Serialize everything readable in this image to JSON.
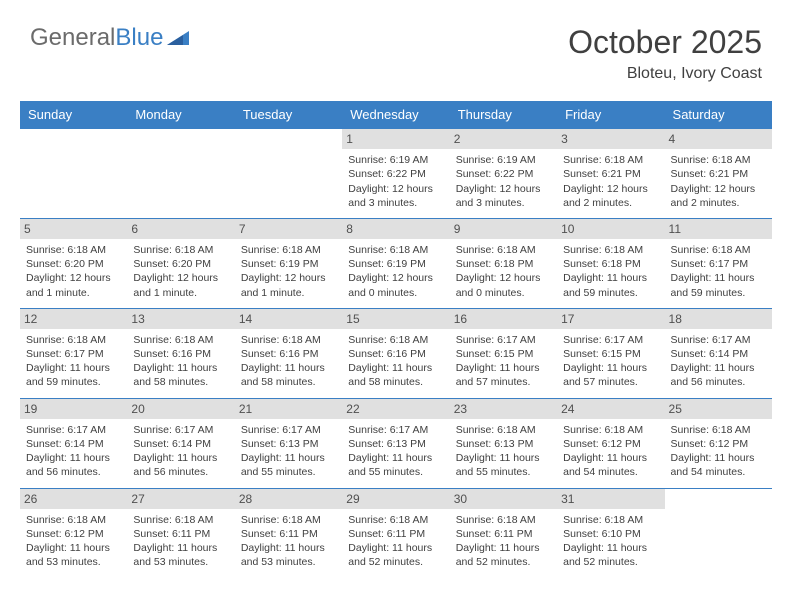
{
  "brand": {
    "part1": "General",
    "part2": "Blue"
  },
  "title": "October 2025",
  "location": "Bloteu, Ivory Coast",
  "colors": {
    "accent": "#3a7fc4",
    "header_text": "#ffffff",
    "body_text": "#404040",
    "daynum_bg": "#e0e0e0",
    "page_bg": "#ffffff"
  },
  "day_labels": [
    "Sunday",
    "Monday",
    "Tuesday",
    "Wednesday",
    "Thursday",
    "Friday",
    "Saturday"
  ],
  "weeks": [
    [
      {
        "n": "",
        "sr": "",
        "ss": "",
        "dl": ""
      },
      {
        "n": "",
        "sr": "",
        "ss": "",
        "dl": ""
      },
      {
        "n": "",
        "sr": "",
        "ss": "",
        "dl": ""
      },
      {
        "n": "1",
        "sr": "Sunrise: 6:19 AM",
        "ss": "Sunset: 6:22 PM",
        "dl": "Daylight: 12 hours and 3 minutes."
      },
      {
        "n": "2",
        "sr": "Sunrise: 6:19 AM",
        "ss": "Sunset: 6:22 PM",
        "dl": "Daylight: 12 hours and 3 minutes."
      },
      {
        "n": "3",
        "sr": "Sunrise: 6:18 AM",
        "ss": "Sunset: 6:21 PM",
        "dl": "Daylight: 12 hours and 2 minutes."
      },
      {
        "n": "4",
        "sr": "Sunrise: 6:18 AM",
        "ss": "Sunset: 6:21 PM",
        "dl": "Daylight: 12 hours and 2 minutes."
      }
    ],
    [
      {
        "n": "5",
        "sr": "Sunrise: 6:18 AM",
        "ss": "Sunset: 6:20 PM",
        "dl": "Daylight: 12 hours and 1 minute."
      },
      {
        "n": "6",
        "sr": "Sunrise: 6:18 AM",
        "ss": "Sunset: 6:20 PM",
        "dl": "Daylight: 12 hours and 1 minute."
      },
      {
        "n": "7",
        "sr": "Sunrise: 6:18 AM",
        "ss": "Sunset: 6:19 PM",
        "dl": "Daylight: 12 hours and 1 minute."
      },
      {
        "n": "8",
        "sr": "Sunrise: 6:18 AM",
        "ss": "Sunset: 6:19 PM",
        "dl": "Daylight: 12 hours and 0 minutes."
      },
      {
        "n": "9",
        "sr": "Sunrise: 6:18 AM",
        "ss": "Sunset: 6:18 PM",
        "dl": "Daylight: 12 hours and 0 minutes."
      },
      {
        "n": "10",
        "sr": "Sunrise: 6:18 AM",
        "ss": "Sunset: 6:18 PM",
        "dl": "Daylight: 11 hours and 59 minutes."
      },
      {
        "n": "11",
        "sr": "Sunrise: 6:18 AM",
        "ss": "Sunset: 6:17 PM",
        "dl": "Daylight: 11 hours and 59 minutes."
      }
    ],
    [
      {
        "n": "12",
        "sr": "Sunrise: 6:18 AM",
        "ss": "Sunset: 6:17 PM",
        "dl": "Daylight: 11 hours and 59 minutes."
      },
      {
        "n": "13",
        "sr": "Sunrise: 6:18 AM",
        "ss": "Sunset: 6:16 PM",
        "dl": "Daylight: 11 hours and 58 minutes."
      },
      {
        "n": "14",
        "sr": "Sunrise: 6:18 AM",
        "ss": "Sunset: 6:16 PM",
        "dl": "Daylight: 11 hours and 58 minutes."
      },
      {
        "n": "15",
        "sr": "Sunrise: 6:18 AM",
        "ss": "Sunset: 6:16 PM",
        "dl": "Daylight: 11 hours and 58 minutes."
      },
      {
        "n": "16",
        "sr": "Sunrise: 6:17 AM",
        "ss": "Sunset: 6:15 PM",
        "dl": "Daylight: 11 hours and 57 minutes."
      },
      {
        "n": "17",
        "sr": "Sunrise: 6:17 AM",
        "ss": "Sunset: 6:15 PM",
        "dl": "Daylight: 11 hours and 57 minutes."
      },
      {
        "n": "18",
        "sr": "Sunrise: 6:17 AM",
        "ss": "Sunset: 6:14 PM",
        "dl": "Daylight: 11 hours and 56 minutes."
      }
    ],
    [
      {
        "n": "19",
        "sr": "Sunrise: 6:17 AM",
        "ss": "Sunset: 6:14 PM",
        "dl": "Daylight: 11 hours and 56 minutes."
      },
      {
        "n": "20",
        "sr": "Sunrise: 6:17 AM",
        "ss": "Sunset: 6:14 PM",
        "dl": "Daylight: 11 hours and 56 minutes."
      },
      {
        "n": "21",
        "sr": "Sunrise: 6:17 AM",
        "ss": "Sunset: 6:13 PM",
        "dl": "Daylight: 11 hours and 55 minutes."
      },
      {
        "n": "22",
        "sr": "Sunrise: 6:17 AM",
        "ss": "Sunset: 6:13 PM",
        "dl": "Daylight: 11 hours and 55 minutes."
      },
      {
        "n": "23",
        "sr": "Sunrise: 6:18 AM",
        "ss": "Sunset: 6:13 PM",
        "dl": "Daylight: 11 hours and 55 minutes."
      },
      {
        "n": "24",
        "sr": "Sunrise: 6:18 AM",
        "ss": "Sunset: 6:12 PM",
        "dl": "Daylight: 11 hours and 54 minutes."
      },
      {
        "n": "25",
        "sr": "Sunrise: 6:18 AM",
        "ss": "Sunset: 6:12 PM",
        "dl": "Daylight: 11 hours and 54 minutes."
      }
    ],
    [
      {
        "n": "26",
        "sr": "Sunrise: 6:18 AM",
        "ss": "Sunset: 6:12 PM",
        "dl": "Daylight: 11 hours and 53 minutes."
      },
      {
        "n": "27",
        "sr": "Sunrise: 6:18 AM",
        "ss": "Sunset: 6:11 PM",
        "dl": "Daylight: 11 hours and 53 minutes."
      },
      {
        "n": "28",
        "sr": "Sunrise: 6:18 AM",
        "ss": "Sunset: 6:11 PM",
        "dl": "Daylight: 11 hours and 53 minutes."
      },
      {
        "n": "29",
        "sr": "Sunrise: 6:18 AM",
        "ss": "Sunset: 6:11 PM",
        "dl": "Daylight: 11 hours and 52 minutes."
      },
      {
        "n": "30",
        "sr": "Sunrise: 6:18 AM",
        "ss": "Sunset: 6:11 PM",
        "dl": "Daylight: 11 hours and 52 minutes."
      },
      {
        "n": "31",
        "sr": "Sunrise: 6:18 AM",
        "ss": "Sunset: 6:10 PM",
        "dl": "Daylight: 11 hours and 52 minutes."
      },
      {
        "n": "",
        "sr": "",
        "ss": "",
        "dl": ""
      }
    ]
  ]
}
